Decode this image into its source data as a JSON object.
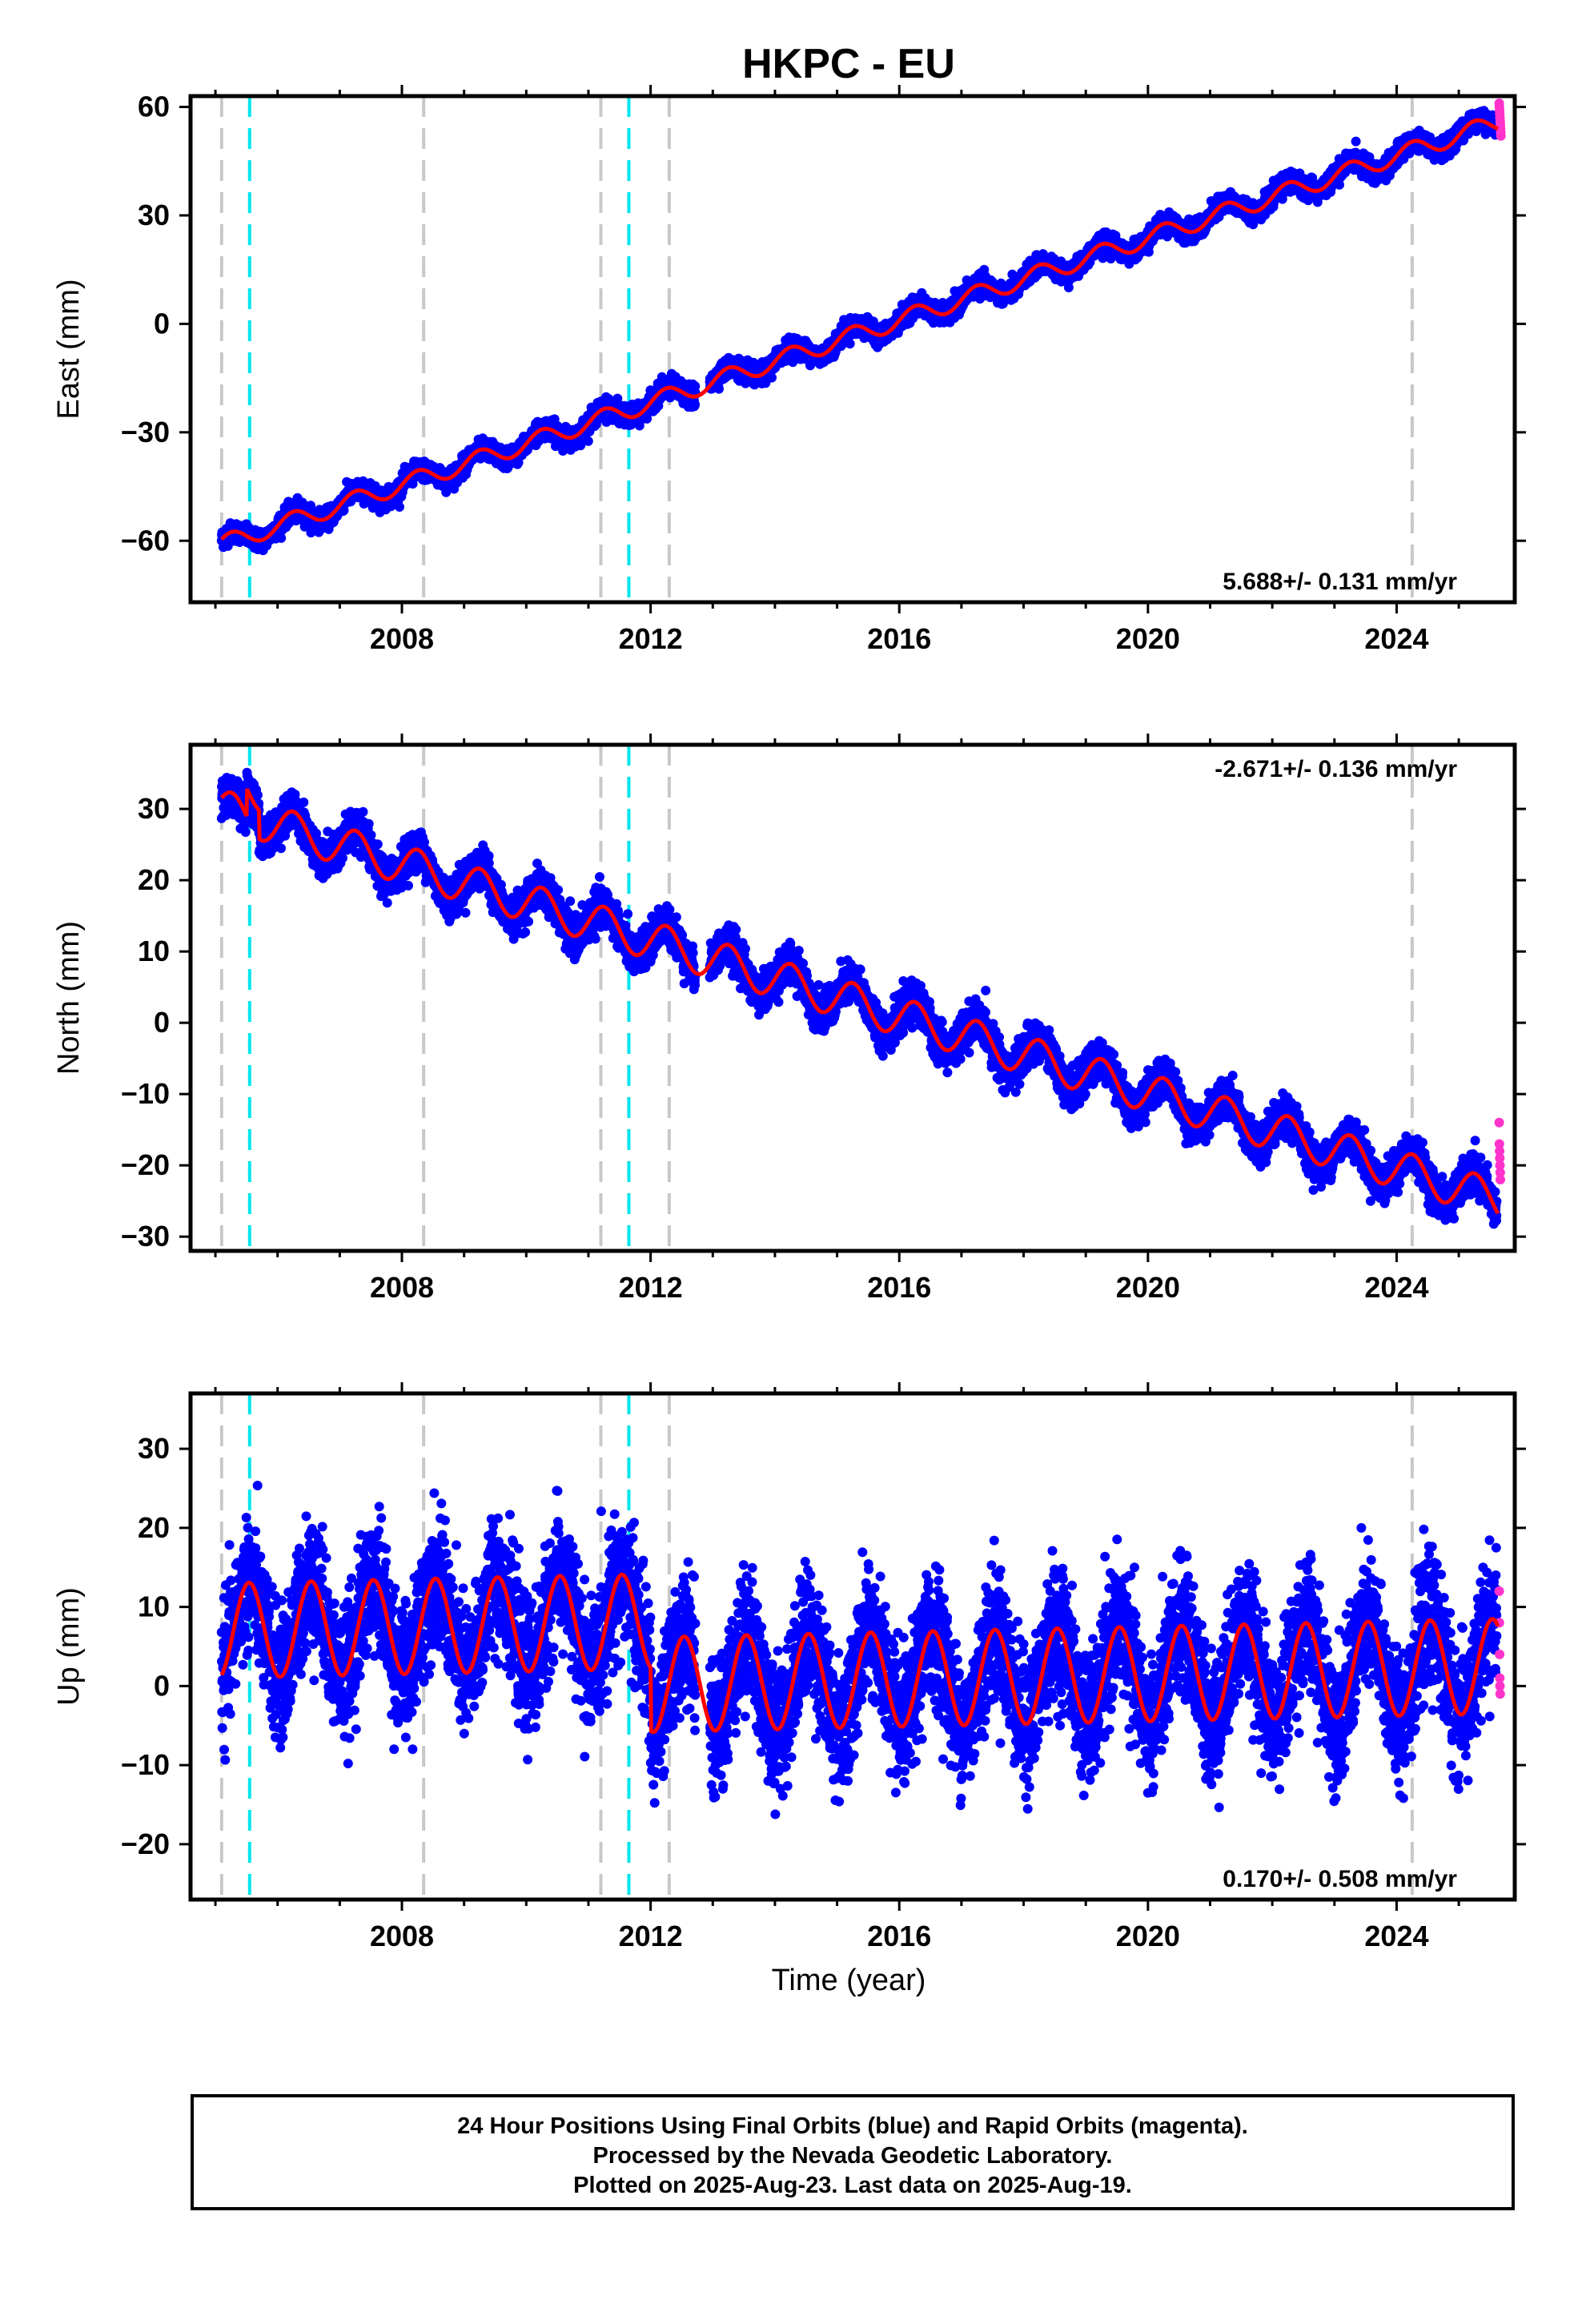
{
  "title": "HKPC - EU",
  "xlabel": "Time (year)",
  "footer": {
    "line1": "24 Hour Positions Using Final Orbits (blue) and Rapid Orbits (magenta).",
    "line2": "Processed by the Nevada Geodetic Laboratory.",
    "line3": "Plotted on 2025-Aug-23. Last data on 2025-Aug-19."
  },
  "colors": {
    "final_orbits": "#0000ff",
    "rapid_orbits": "#ff33cc",
    "model_fit": "#ff0000",
    "equipment_change": "#c8c8c8",
    "earthquake": "#00e5ee"
  },
  "chart_data": [
    {
      "type": "scatter",
      "component": "east",
      "ylabel": "East (mm)",
      "xlim": [
        2004.6,
        2025.9
      ],
      "ylim": [
        -77,
        63
      ],
      "x_ticks": [
        2008,
        2012,
        2016,
        2020,
        2024
      ],
      "y_ticks": [
        -60,
        -30,
        0,
        30,
        60
      ],
      "grid": false,
      "velocity_label": "5.688+/- 0.131 mm/yr",
      "velocity_label_position": "bottom-right",
      "x_start": 2005.1,
      "x_end": 2025.63,
      "trend": {
        "value_at_2005_1": -61,
        "rate_mm_per_yr": 5.688
      },
      "seasonal_amplitude": 2.5,
      "scatter_sd": 1.3,
      "offsets": [
        {
          "year": 2005.1,
          "mm": 0
        },
        {
          "year": 2005.5,
          "mm": 0
        },
        {
          "year": 2012.3,
          "mm": 0
        }
      ],
      "rapid_orbit_values": [
        61,
        60,
        59,
        58,
        57,
        56,
        55,
        54,
        53,
        52
      ]
    },
    {
      "type": "scatter",
      "component": "north",
      "ylabel": "North (mm)",
      "xlim": [
        2004.6,
        2025.9
      ],
      "ylim": [
        -32,
        39
      ],
      "x_ticks": [
        2008,
        2012,
        2016,
        2020,
        2024
      ],
      "y_ticks": [
        -30,
        -20,
        -10,
        0,
        10,
        20,
        30
      ],
      "grid": false,
      "velocity_label": "-2.671+/- 0.136 mm/yr",
      "velocity_label_position": "top-right",
      "x_start": 2005.1,
      "x_end": 2025.63,
      "trend": {
        "value_at_2005_1": 30,
        "rate_mm_per_yr": -2.671
      },
      "seasonal_amplitude": 2.7,
      "scatter_sd": 1.3,
      "offsets": [
        {
          "year": 2005.5,
          "mm": 4
        },
        {
          "year": 2005.7,
          "mm": -4
        }
      ],
      "rapid_orbit_values": [
        -14,
        -17,
        -18,
        -19,
        -20,
        -21,
        -22
      ]
    },
    {
      "type": "scatter",
      "component": "up",
      "ylabel": "Up (mm)",
      "xlim": [
        2004.6,
        2025.9
      ],
      "ylim": [
        -27,
        37
      ],
      "x_ticks": [
        2008,
        2012,
        2016,
        2020,
        2024
      ],
      "y_ticks": [
        -20,
        -10,
        0,
        10,
        20,
        30
      ],
      "grid": false,
      "velocity_label": "0.170+/- 0.508 mm/yr",
      "velocity_label_position": "bottom-right",
      "x_start": 2005.1,
      "x_end": 2025.63,
      "trend": {
        "value_at_2005_1": 7,
        "rate_mm_per_yr": 0.17
      },
      "seasonal_amplitude": 6,
      "scatter_sd": 4,
      "offsets": [
        {
          "year": 2012.0,
          "mm": -8
        }
      ],
      "rapid_orbit_values": [
        12,
        8,
        4,
        1,
        0,
        -1
      ]
    }
  ],
  "equipment_change_years": [
    2005.1,
    2008.35,
    2011.2,
    2012.3,
    2024.25
  ],
  "earthquake_years": [
    2005.55,
    2011.65
  ]
}
